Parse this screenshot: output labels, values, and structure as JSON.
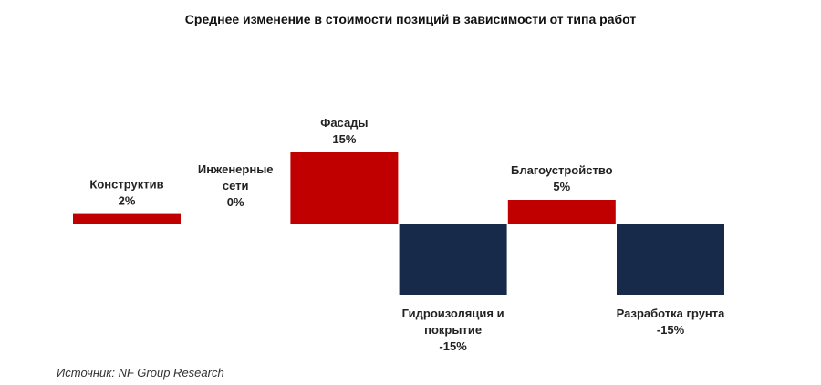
{
  "chart_data": {
    "type": "bar",
    "title": "Среднее изменение в стоимости позиций в зависимости от типа работ",
    "categories": [
      "Конструктив",
      "Инженерные сети",
      "Фасады",
      "Гидроизоляция и покрытие",
      "Благоустройство",
      "Разработка грунта"
    ],
    "category_label_lines": [
      [
        "Конструктив"
      ],
      [
        "Инженерные",
        "сети"
      ],
      [
        "Фасады"
      ],
      [
        "Гидроизоляция и",
        "покрытие"
      ],
      [
        "Благоустройство"
      ],
      [
        "Разработка грунта"
      ]
    ],
    "values": [
      2,
      0,
      15,
      -15,
      5,
      -15
    ],
    "value_labels": [
      "2%",
      "0%",
      "15%",
      "-15%",
      "5%",
      "-15%"
    ],
    "unit": "%",
    "colors": {
      "positive": "#c00000",
      "negative": "#172a4a"
    },
    "xlabel": "",
    "ylabel": "",
    "grid": false,
    "legend": "none"
  },
  "source": "Источник: NF Group Research"
}
